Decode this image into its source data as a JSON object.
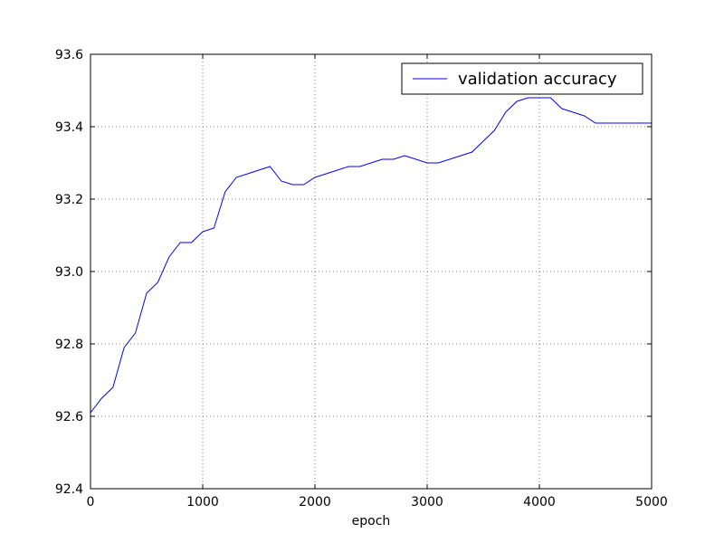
{
  "chart_data": {
    "type": "line",
    "title": "",
    "xlabel": "epoch",
    "ylabel": "",
    "xlim": [
      0,
      5000
    ],
    "ylim": [
      92.4,
      93.6
    ],
    "xticks": [
      0,
      1000,
      2000,
      3000,
      4000,
      5000
    ],
    "yticks": [
      92.4,
      92.6,
      92.8,
      93.0,
      93.2,
      93.4,
      93.6
    ],
    "xtick_labels": [
      "0",
      "1000",
      "2000",
      "3000",
      "4000",
      "5000"
    ],
    "ytick_labels": [
      "92.4",
      "92.6",
      "92.8",
      "93.0",
      "93.2",
      "93.4",
      "93.6"
    ],
    "grid": true,
    "legend_position": "top-right",
    "line_color": "#0000ff",
    "series": [
      {
        "name": "validation accuracy",
        "x": [
          0,
          100,
          200,
          300,
          400,
          500,
          600,
          700,
          800,
          900,
          1000,
          1100,
          1200,
          1300,
          1400,
          1500,
          1600,
          1700,
          1800,
          1900,
          2000,
          2100,
          2200,
          2300,
          2400,
          2500,
          2600,
          2700,
          2800,
          2900,
          3000,
          3100,
          3200,
          3300,
          3400,
          3500,
          3600,
          3700,
          3800,
          3900,
          4000,
          4100,
          4200,
          4300,
          4400,
          4500,
          4600,
          4700,
          4800,
          4900,
          5000
        ],
        "values": [
          92.61,
          92.65,
          92.68,
          92.79,
          92.83,
          92.94,
          92.97,
          93.04,
          93.08,
          93.08,
          93.11,
          93.12,
          93.22,
          93.26,
          93.27,
          93.28,
          93.29,
          93.25,
          93.24,
          93.24,
          93.26,
          93.27,
          93.28,
          93.29,
          93.29,
          93.3,
          93.31,
          93.31,
          93.32,
          93.31,
          93.3,
          93.3,
          93.31,
          93.32,
          93.33,
          93.36,
          93.39,
          93.44,
          93.47,
          93.48,
          93.48,
          93.48,
          93.45,
          93.44,
          93.43,
          93.41,
          93.41,
          93.41,
          93.41,
          93.41,
          93.41
        ]
      }
    ]
  }
}
